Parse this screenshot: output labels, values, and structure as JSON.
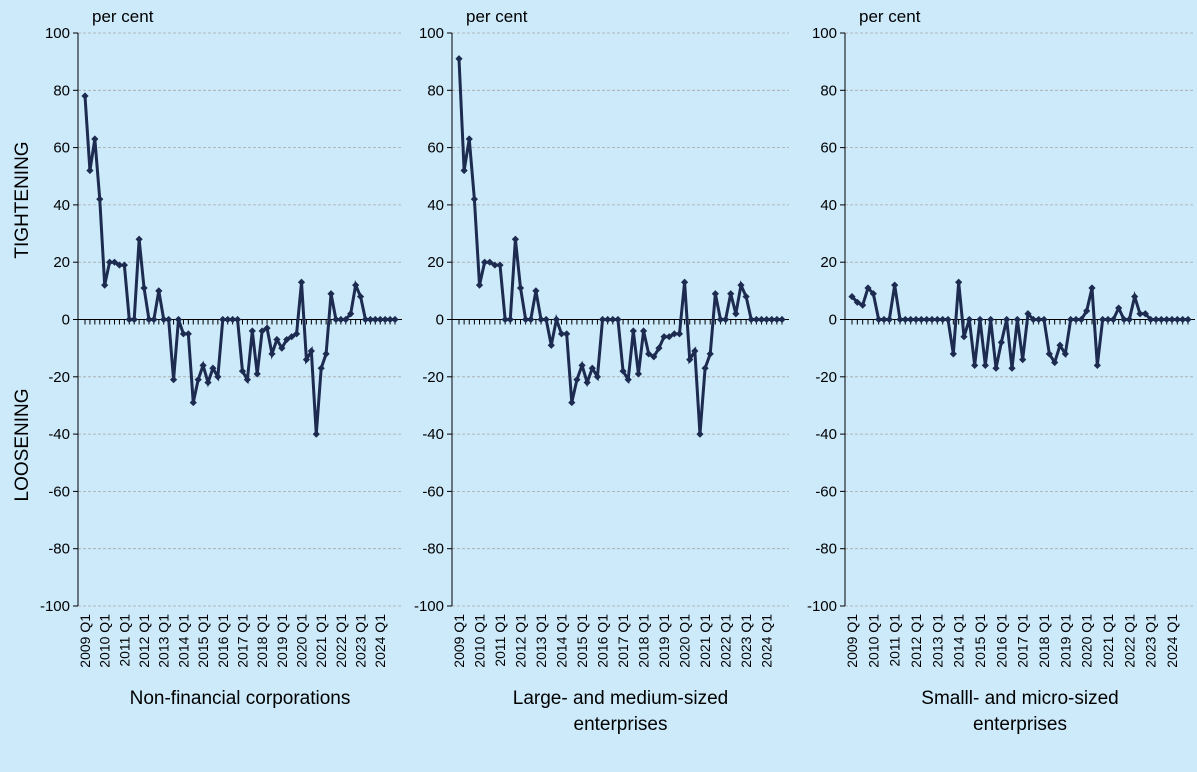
{
  "chart_data": [
    {
      "type": "line",
      "title": "Non-financial corporations",
      "ylabel": "per cent",
      "annotations": [
        "TIGHTENING",
        "LOOSENING"
      ],
      "categories": [
        "2009 Q1",
        null,
        null,
        null,
        "2010 Q1",
        null,
        null,
        null,
        "2011 Q1",
        null,
        null,
        null,
        "2012 Q1",
        null,
        null,
        null,
        "2013 Q1",
        null,
        null,
        null,
        "2014 Q1",
        null,
        null,
        null,
        "2015 Q1",
        null,
        null,
        null,
        "2016 Q1",
        null,
        null,
        null,
        "2017 Q1",
        null,
        null,
        null,
        "2018 Q1",
        null,
        null,
        null,
        "2019 Q1",
        null,
        null,
        null,
        "2020 Q1",
        null,
        null,
        null,
        "2021 Q1",
        null,
        null,
        null,
        "2022 Q1",
        null,
        null,
        null,
        "2023 Q1",
        null,
        null,
        null,
        "2024 Q1",
        null,
        null,
        null
      ],
      "series": [
        {
          "color": "#1c2b4f",
          "values": [
            78,
            52,
            63,
            42,
            12,
            20,
            20,
            19,
            19,
            0,
            0,
            28,
            11,
            0,
            0,
            10,
            0,
            0,
            -21,
            0,
            -5,
            -5,
            -29,
            -21,
            -16,
            -22,
            -17,
            -20,
            0,
            0,
            0,
            0,
            -18,
            -21,
            -4,
            -19,
            -4,
            -3,
            -12,
            -7,
            -10,
            -7,
            -6,
            -5,
            13,
            -14,
            -11,
            -40,
            -17,
            -12,
            9,
            0,
            0,
            0,
            2,
            12,
            8,
            0,
            0,
            0,
            0,
            0,
            0,
            0
          ]
        }
      ],
      "ylim": [
        -100,
        100
      ],
      "yticks": [
        -100,
        -80,
        -60,
        -40,
        -20,
        0,
        20,
        40,
        60,
        80,
        100
      ],
      "grid": true
    },
    {
      "type": "line",
      "title": "Large- and medium-sized enterprises",
      "ylabel": "per cent",
      "categories": [
        "2009 Q1",
        null,
        null,
        null,
        "2010 Q1",
        null,
        null,
        null,
        "2011 Q1",
        null,
        null,
        null,
        "2012 Q1",
        null,
        null,
        null,
        "2013 Q1",
        null,
        null,
        null,
        "2014 Q1",
        null,
        null,
        null,
        "2015 Q1",
        null,
        null,
        null,
        "2016 Q1",
        null,
        null,
        null,
        "2017 Q1",
        null,
        null,
        null,
        "2018 Q1",
        null,
        null,
        null,
        "2019 Q1",
        null,
        null,
        null,
        "2020 Q1",
        null,
        null,
        null,
        "2021 Q1",
        null,
        null,
        null,
        "2022 Q1",
        null,
        null,
        null,
        "2023 Q1",
        null,
        null,
        null,
        "2024 Q1",
        null,
        null,
        null
      ],
      "series": [
        {
          "color": "#1c2b4f",
          "values": [
            91,
            52,
            63,
            42,
            12,
            20,
            20,
            19,
            19,
            0,
            0,
            28,
            11,
            0,
            0,
            10,
            0,
            0,
            -9,
            0,
            -5,
            -5,
            -29,
            -21,
            -16,
            -22,
            -17,
            -20,
            0,
            0,
            0,
            0,
            -18,
            -21,
            -4,
            -19,
            -4,
            -12,
            -13,
            -10,
            -6,
            -6,
            -5,
            -5,
            13,
            -14,
            -11,
            -40,
            -17,
            -12,
            9,
            0,
            0,
            9,
            2,
            12,
            8,
            0,
            0,
            0,
            0,
            0,
            0,
            0
          ]
        }
      ],
      "ylim": [
        -100,
        100
      ],
      "yticks": [
        -100,
        -80,
        -60,
        -40,
        -20,
        0,
        20,
        40,
        60,
        80,
        100
      ],
      "grid": true
    },
    {
      "type": "line",
      "title": "Smalll- and micro-sized enterprises",
      "ylabel": "per cent",
      "categories": [
        "2009 Q1",
        null,
        null,
        null,
        "2010 Q1",
        null,
        null,
        null,
        "2011 Q1",
        null,
        null,
        null,
        "2012 Q1",
        null,
        null,
        null,
        "2013 Q1",
        null,
        null,
        null,
        "2014 Q1",
        null,
        null,
        null,
        "2015 Q1",
        null,
        null,
        null,
        "2016 Q1",
        null,
        null,
        null,
        "2017 Q1",
        null,
        null,
        null,
        "2018 Q1",
        null,
        null,
        null,
        "2019 Q1",
        null,
        null,
        null,
        "2020 Q1",
        null,
        null,
        null,
        "2021 Q1",
        null,
        null,
        null,
        "2022 Q1",
        null,
        null,
        null,
        "2023 Q1",
        null,
        null,
        null,
        "2024 Q1",
        null,
        null,
        null
      ],
      "series": [
        {
          "color": "#1c2b4f",
          "values": [
            8,
            6,
            5,
            11,
            9,
            0,
            0,
            0,
            12,
            0,
            0,
            0,
            0,
            0,
            0,
            0,
            0,
            0,
            0,
            -12,
            13,
            -6,
            0,
            -16,
            0,
            -16,
            0,
            -17,
            -8,
            0,
            -17,
            0,
            -14,
            2,
            0,
            0,
            0,
            -12,
            -15,
            -9,
            -12,
            0,
            0,
            0,
            3,
            11,
            -16,
            0,
            0,
            0,
            4,
            0,
            0,
            8,
            2,
            2,
            0,
            0,
            0,
            0,
            0,
            0,
            0,
            0
          ]
        }
      ],
      "ylim": [
        -100,
        100
      ],
      "yticks": [
        -100,
        -80,
        -60,
        -40,
        -20,
        0,
        20,
        40,
        60,
        80,
        100
      ],
      "grid": true
    }
  ]
}
